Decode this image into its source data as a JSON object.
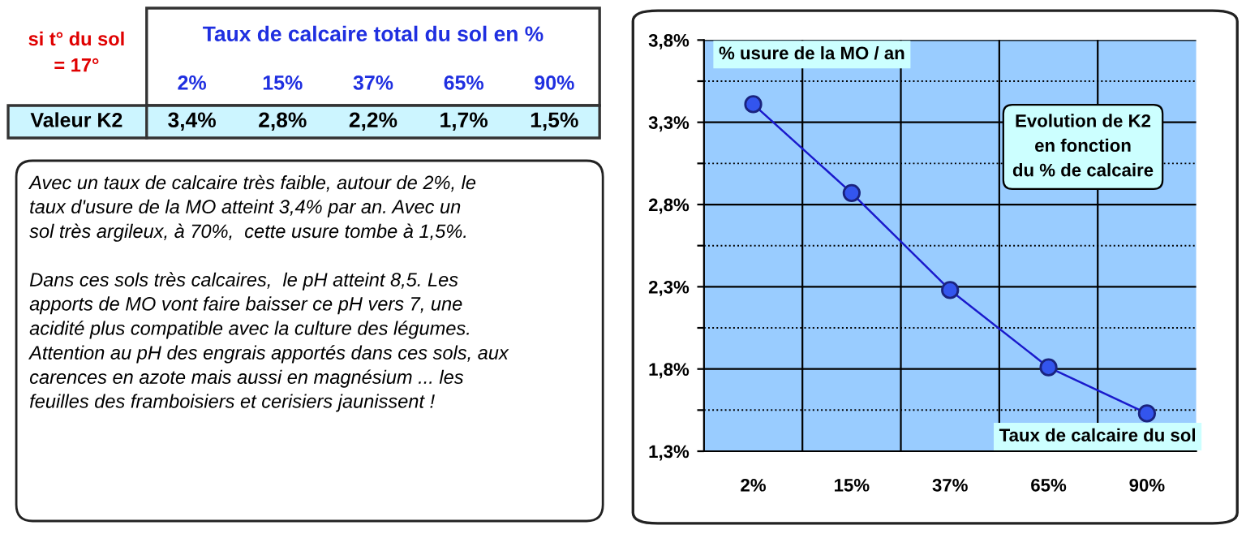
{
  "chart_data": [
    {
      "type": "other",
      "title": "Taux de calcaire total du sol en %",
      "categories": [
        "2%",
        "15%",
        "37%",
        "65%",
        "90%"
      ],
      "annotations": [
        "si t° du sol\n= 17°",
        "Valeur K2",
        "3,4%",
        "2,8%",
        "2,2%",
        "1,7%",
        "1,5%",
        "Avec un taux de calcaire très faible, autour de 2%, le\ntaux d'usure de la MO atteint 3,4% par an. Avec un\nsol très argileux, à 70%,  cette usure tombe à 1,5%.\n\nDans ces sols très calcaires,  le pH atteint 8,5. Les\napports de MO vont faire baisser ce pH vers 7, une\nacidité plus compatible avec la culture des légumes.\nAttention au pH des engrais apportés dans ces sols, aux\ncarences en azote mais aussi en magnésium ... les\nfeuilles des framboisiers et cerisiers jaunissent !"
      ]
    },
    {
      "type": "line",
      "title": "Evolution de K2\nen fonction\ndu % de calcaire",
      "xlabel": "Taux de calcaire du sol",
      "ylabel": "% usure de la MO / an",
      "categories": [
        "2%",
        "15%",
        "37%",
        "65%",
        "90%"
      ],
      "series": [
        {
          "color": "#3355ee",
          "values": [
            3.41,
            2.87,
            2.28,
            1.81,
            1.53
          ]
        }
      ],
      "ylim": [
        1.3,
        3.8
      ],
      "yticks": [
        {
          "value": 1.3,
          "label": "1,3%"
        },
        {
          "value": 1.55,
          "label": null
        },
        {
          "value": 1.8,
          "label": "1,8%"
        },
        {
          "value": 2.05,
          "label": null
        },
        {
          "value": 2.3,
          "label": "2,3%"
        },
        {
          "value": 2.55,
          "label": null
        },
        {
          "value": 2.8,
          "label": "2,8%"
        },
        {
          "value": 3.05,
          "label": null
        },
        {
          "value": 3.3,
          "label": "3,3%"
        },
        {
          "value": 3.55,
          "label": null
        },
        {
          "value": 3.8,
          "label": "3,8%"
        }
      ],
      "grid": true,
      "marker": "circle",
      "line_style": "solid",
      "legend": false
    }
  ]
}
